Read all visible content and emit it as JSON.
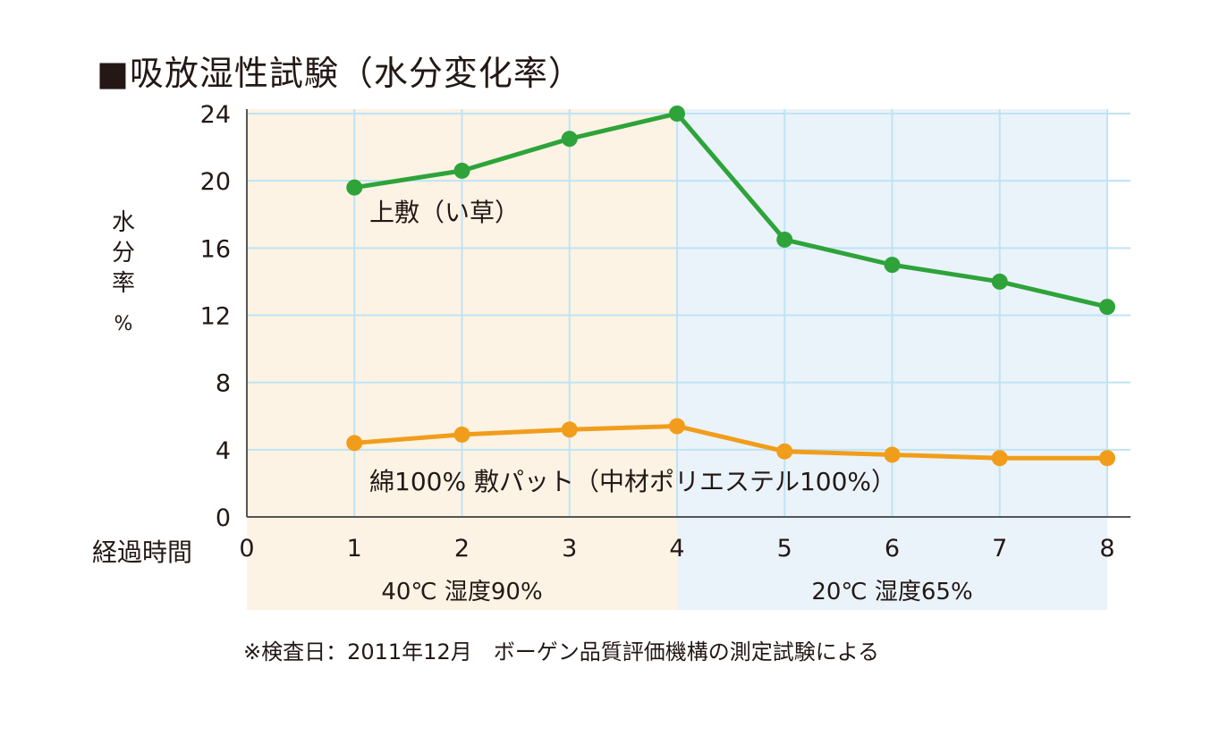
{
  "title": "■吸放湿性試験（水分変化率）",
  "y_axis_label": [
    "水",
    "分",
    "率"
  ],
  "y_axis_unit": "%",
  "x_axis_label": "経過時間",
  "footnote": "※検査日：2011年12月　ボーゲン品質評価機構の測定試験による",
  "chart_data": {
    "type": "line",
    "x": [
      0,
      1,
      2,
      3,
      4,
      5,
      6,
      7,
      8
    ],
    "xlim": [
      0,
      8
    ],
    "ylim": [
      0,
      24
    ],
    "y_ticks": [
      0,
      4,
      8,
      12,
      16,
      20,
      24
    ],
    "x_ticks": [
      0,
      1,
      2,
      3,
      4,
      5,
      6,
      7,
      8
    ],
    "grid": true,
    "regions": [
      {
        "label": "40℃ 湿度90%",
        "x_start": 0,
        "x_end": 4,
        "color": "#fcf3e4"
      },
      {
        "label": "20℃ 湿度65%",
        "x_start": 4,
        "x_end": 8,
        "color": "#eaf3fa"
      }
    ],
    "series": [
      {
        "name": "上敷（い草）",
        "color": "#2ea33a",
        "x": [
          1,
          2,
          3,
          4,
          5,
          6,
          7,
          8
        ],
        "values": [
          19.6,
          20.6,
          22.5,
          24.0,
          16.5,
          15.0,
          14.0,
          12.5
        ]
      },
      {
        "name": "綿100%  敷パット（中材ポリエステル100%）",
        "color": "#f19d1b",
        "x": [
          1,
          2,
          3,
          4,
          5,
          6,
          7,
          8
        ],
        "values": [
          4.4,
          4.9,
          5.2,
          5.4,
          3.9,
          3.7,
          3.5,
          3.5
        ]
      }
    ]
  }
}
